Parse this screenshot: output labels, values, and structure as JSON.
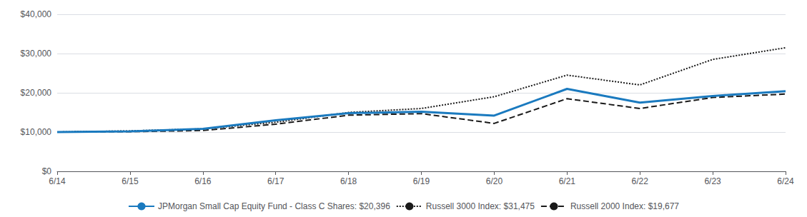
{
  "chart_data": {
    "type": "line",
    "categories": [
      "6/14",
      "6/15",
      "6/16",
      "6/17",
      "6/18",
      "6/19",
      "6/20",
      "6/21",
      "6/22",
      "6/23",
      "6/24"
    ],
    "series": [
      {
        "name": "JPMorgan Small Cap Equity Fund - Class C Shares: $20,396",
        "color": "#1a7abf",
        "line_style": "solid",
        "values": [
          10000,
          10200,
          10800,
          13000,
          14800,
          15200,
          14200,
          21000,
          17500,
          19200,
          20396
        ]
      },
      {
        "name": "Russell 3000 Index: $31,475",
        "color": "#1a1a1a",
        "line_style": "dotted",
        "values": [
          10000,
          10300,
          10800,
          12500,
          15000,
          16000,
          19000,
          24500,
          22000,
          28500,
          31475
        ]
      },
      {
        "name": "Russell 2000 Index: $19,677",
        "color": "#1a1a1a",
        "line_style": "dashed",
        "values": [
          10000,
          10100,
          10400,
          12000,
          14300,
          14700,
          12200,
          18500,
          16000,
          18800,
          19677
        ]
      }
    ],
    "ylim": [
      0,
      40000
    ],
    "yticks": [
      {
        "value": 0,
        "label": "$0"
      },
      {
        "value": 10000,
        "label": "$10,000"
      },
      {
        "value": 20000,
        "label": "$20,000"
      },
      {
        "value": 30000,
        "label": "$30,000"
      },
      {
        "value": 40000,
        "label": "$40,000"
      }
    ],
    "grid": true,
    "legend": "bottom"
  }
}
